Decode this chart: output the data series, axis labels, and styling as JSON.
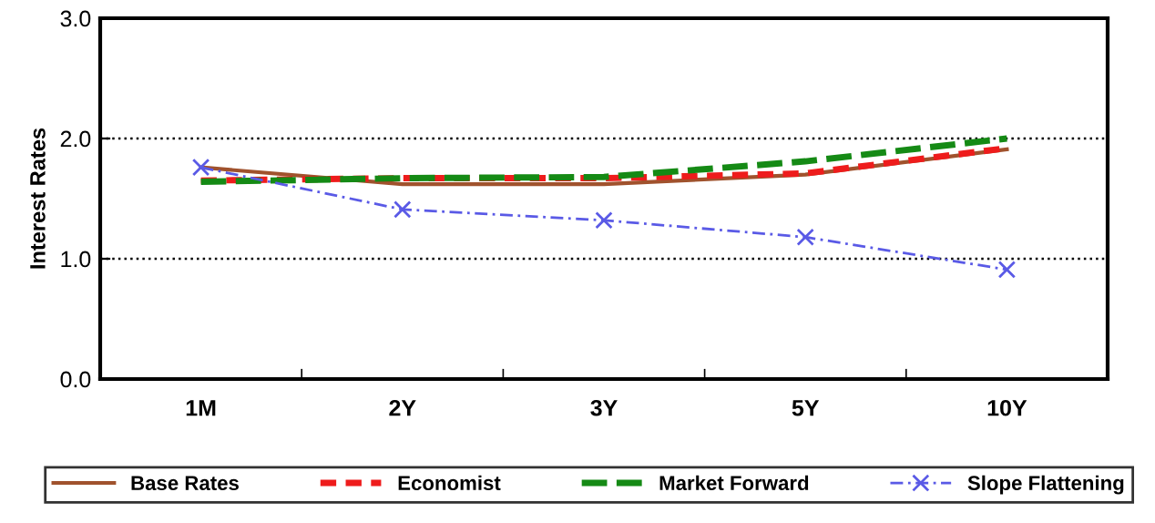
{
  "chart_data": {
    "type": "line",
    "ylabel": "Interest Rates",
    "categories": [
      "1M",
      "2Y",
      "3Y",
      "5Y",
      "10Y"
    ],
    "series": [
      {
        "name": "Base Rates",
        "color": "#a0522d",
        "values": [
          1.76,
          1.62,
          1.62,
          1.7,
          1.91
        ],
        "line_style": "solid",
        "marker": "none"
      },
      {
        "name": "Economist",
        "color": "#ee1c1c",
        "values": [
          1.65,
          1.67,
          1.67,
          1.71,
          1.92
        ],
        "line_style": "dotted",
        "marker": "none"
      },
      {
        "name": "Market Forward",
        "color": "#158a15",
        "values": [
          1.64,
          1.67,
          1.68,
          1.81,
          2.0
        ],
        "line_style": "dashed",
        "marker": "none"
      },
      {
        "name": "Slope Flattening",
        "color": "#5a5ae6",
        "values": [
          1.76,
          1.41,
          1.32,
          1.18,
          0.91
        ],
        "line_style": "dashed",
        "marker": "cross"
      }
    ],
    "ylim": [
      0,
      3
    ],
    "yticks": [
      {
        "value": 0,
        "label": "0.0"
      },
      {
        "value": 1,
        "label": "1.0"
      },
      {
        "value": 2,
        "label": "2.0"
      },
      {
        "value": 3,
        "label": "3.0"
      }
    ],
    "grid": "y",
    "legend": "bottom"
  }
}
